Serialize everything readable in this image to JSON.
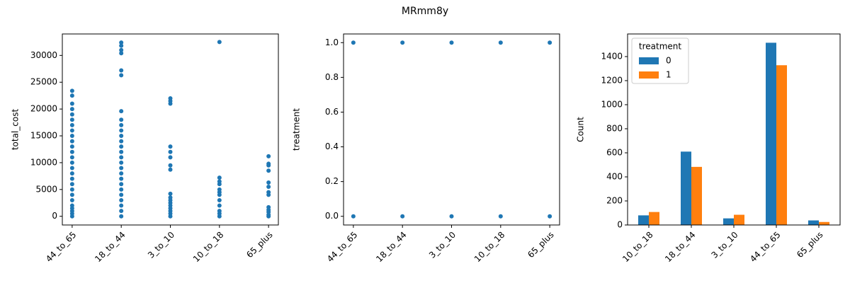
{
  "title": "MRmm8y",
  "chart_data": [
    {
      "type": "strip",
      "ylabel": "total_cost",
      "color": "#1f77b4",
      "categories": [
        "44_to_65",
        "18_to_44",
        "3_to_10",
        "10_to_18",
        "65_plus"
      ],
      "values": [
        [
          0,
          500,
          1000,
          1500,
          2000,
          3000,
          4000,
          5000,
          6000,
          7000,
          8000,
          9000,
          10000,
          11000,
          12000,
          13000,
          14000,
          15000,
          16000,
          17000,
          18000,
          19000,
          20000,
          21000,
          22500,
          23400
        ],
        [
          0,
          1000,
          2000,
          3000,
          4000,
          5000,
          6000,
          7000,
          8000,
          9000,
          10000,
          11000,
          12000,
          13000,
          14000,
          15000,
          16000,
          17000,
          18000,
          19600,
          26300,
          27200,
          30400,
          31000,
          31800,
          32400
        ],
        [
          0,
          500,
          1000,
          1500,
          2000,
          2500,
          3000,
          3500,
          4200,
          8700,
          9500,
          11000,
          12000,
          13000,
          21000,
          21500,
          22000
        ],
        [
          0,
          500,
          1000,
          2000,
          3000,
          4000,
          4500,
          5000,
          6000,
          6500,
          7200,
          32500
        ],
        [
          0,
          300,
          800,
          1200,
          1700,
          4000,
          4500,
          5500,
          6300,
          8500,
          9500,
          9800,
          11200
        ]
      ],
      "ylim": [
        -1620,
        34000
      ],
      "yticks": [
        0,
        5000,
        10000,
        15000,
        20000,
        25000,
        30000
      ]
    },
    {
      "type": "strip",
      "ylabel": "treatment",
      "color": "#1f77b4",
      "categories": [
        "44_to_65",
        "18_to_44",
        "3_to_10",
        "10_to_18",
        "65_plus"
      ],
      "values": [
        [
          0,
          1
        ],
        [
          0,
          1
        ],
        [
          0,
          1
        ],
        [
          0,
          1
        ],
        [
          0,
          1
        ]
      ],
      "ylim": [
        -0.05,
        1.05
      ],
      "yticks": [
        {
          "value": 0,
          "label": "0.0"
        },
        0.2,
        0.4,
        0.6,
        0.8,
        {
          "value": 1,
          "label": "1.0"
        }
      ]
    },
    {
      "type": "bar",
      "ylabel": "Count",
      "legend_title": "treatment",
      "legend": "upper left",
      "categories": [
        "10_to_18",
        "18_to_44",
        "3_to_10",
        "44_to_65",
        "65_plus"
      ],
      "series": [
        {
          "name": "0",
          "color": "#1f77b4",
          "values": [
            80,
            610,
            55,
            1515,
            38
          ]
        },
        {
          "name": "1",
          "color": "#ff7f0e",
          "values": [
            108,
            483,
            85,
            1328,
            25
          ]
        }
      ],
      "ylim": [
        0,
        1588
      ],
      "yticks": [
        0,
        200,
        400,
        600,
        800,
        1000,
        1200,
        1400
      ]
    }
  ]
}
